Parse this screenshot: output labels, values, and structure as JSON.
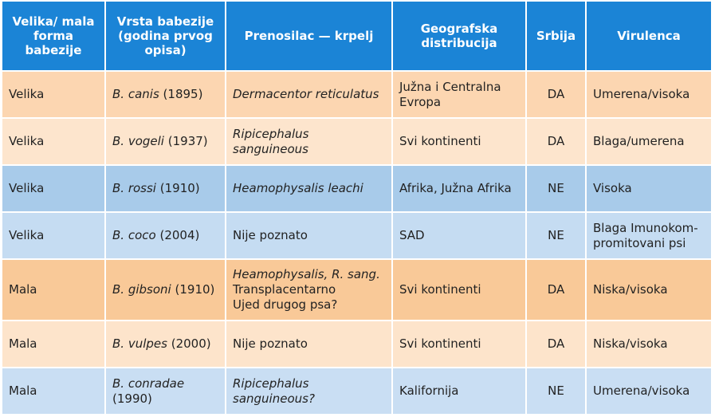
{
  "header": {
    "forma": "Velika/ mala forma babezije",
    "vrsta": "Vrsta babezije (godina prvog opisa)",
    "prenosilac": "Prenosilac — krpelj",
    "distribucija": "Geografska distribucija",
    "srbija": "Srbija",
    "virulencija": "Virulenca"
  },
  "rows": [
    {
      "forma": "Velika",
      "species": "B. canis",
      "year": "(1895)",
      "vector": [
        "Dermacentor reticulatus"
      ],
      "vector_italic": [
        true
      ],
      "distribution": "Južna i Centralna Evropa",
      "srbija": "DA",
      "virulence": "Umerena/visoka"
    },
    {
      "forma": "Velika",
      "species": "B. vogeli",
      "year": "(1937)",
      "vector": [
        "Ripicephalus sanguineous"
      ],
      "vector_italic": [
        true
      ],
      "distribution": "Svi kontinenti",
      "srbija": "DA",
      "virulence": "Blaga/umerena"
    },
    {
      "forma": "Velika",
      "species": "B. rossi",
      "year": "(1910)",
      "vector": [
        "Heamophysalis leachi"
      ],
      "vector_italic": [
        true
      ],
      "distribution": "Afrika, Južna Afrika",
      "srbija": "NE",
      "virulence": "Visoka"
    },
    {
      "forma": "Velika",
      "species": "B. coco",
      "year": "(2004)",
      "vector": [
        "Nije poznato"
      ],
      "vector_italic": [
        false
      ],
      "distribution": "SAD",
      "srbija": "NE",
      "virulence": "Blaga Imunokom-promitovani psi"
    },
    {
      "forma": "Mala",
      "species": "B. gibsoni",
      "year": "(1910)",
      "vector": [
        "Heamophysalis, R. sang.",
        "Transplacentarno",
        "Ujed drugog psa?"
      ],
      "vector_italic": [
        true,
        false,
        false
      ],
      "distribution": "Svi kontinenti",
      "srbija": "DA",
      "virulence": "Niska/visoka"
    },
    {
      "forma": "Mala",
      "species": "B. vulpes",
      "year": "(2000)",
      "vector": [
        "Nije poznato"
      ],
      "vector_italic": [
        false
      ],
      "distribution": "Svi kontinenti",
      "srbija": "DA",
      "virulence": "Niska/visoka"
    },
    {
      "forma": "Mala",
      "species": "B. conradae",
      "year": "(1990)",
      "vector": [
        "Ripicephalus sanguineous?"
      ],
      "vector_italic": [
        true
      ],
      "distribution": "Kalifornija",
      "srbija": "NE",
      "virulence": "Umerena/visoka"
    }
  ],
  "colors": {
    "header": "#1b84d6",
    "row_1": "#fcd6b1",
    "row_2": "#fde5cd",
    "row_3": "#a8cbea",
    "row_4": "#c5dcf2",
    "row_5": "#f9c998",
    "row_6": "#fde4cb",
    "row_7": "#c9def3"
  }
}
